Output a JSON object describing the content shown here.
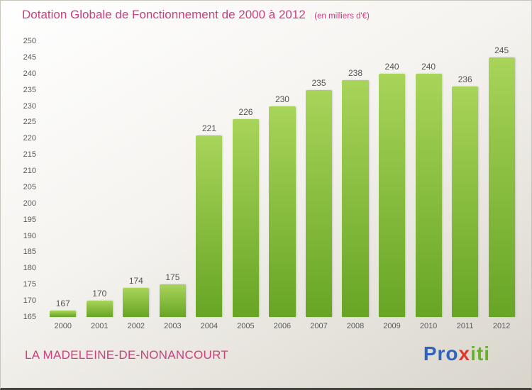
{
  "header": {
    "title": "Dotation Globale de Fonctionnement de 2000 à 2012",
    "subtitle": "(en milliers d'€)"
  },
  "chart_data": {
    "type": "bar",
    "title": "Dotation Globale de Fonctionnement de 2000 à 2012",
    "categories": [
      "2000",
      "2001",
      "2002",
      "2003",
      "2004",
      "2005",
      "2006",
      "2007",
      "2008",
      "2009",
      "2010",
      "2011",
      "2012"
    ],
    "values": [
      167,
      170,
      174,
      175,
      221,
      226,
      230,
      235,
      238,
      240,
      240,
      236,
      245
    ],
    "xlabel": "",
    "ylabel": "",
    "ylim": [
      165,
      250
    ],
    "ytick_step": 5,
    "grid": false,
    "legend": false,
    "bar_color_top": "#a8d45a",
    "bar_color_bottom": "#67a525",
    "value_label_color": "#555555"
  },
  "footer": {
    "location": "LA MADELEINE-DE-NONANCOURT"
  },
  "logo": {
    "text": "Proxiti",
    "letters": [
      {
        "char": "P",
        "color": "#2f63be"
      },
      {
        "char": "r",
        "color": "#2f63be"
      },
      {
        "char": "o",
        "color": "#2f63be"
      },
      {
        "char": "x",
        "color": "#e2382b"
      },
      {
        "char": "i",
        "color": "#67b02d"
      },
      {
        "char": "t",
        "color": "#67b02d"
      },
      {
        "char": "i",
        "color": "#67b02d"
      }
    ]
  },
  "colors": {
    "accent_pink": "#c9417e",
    "tick_label": "#5a5a5a"
  }
}
